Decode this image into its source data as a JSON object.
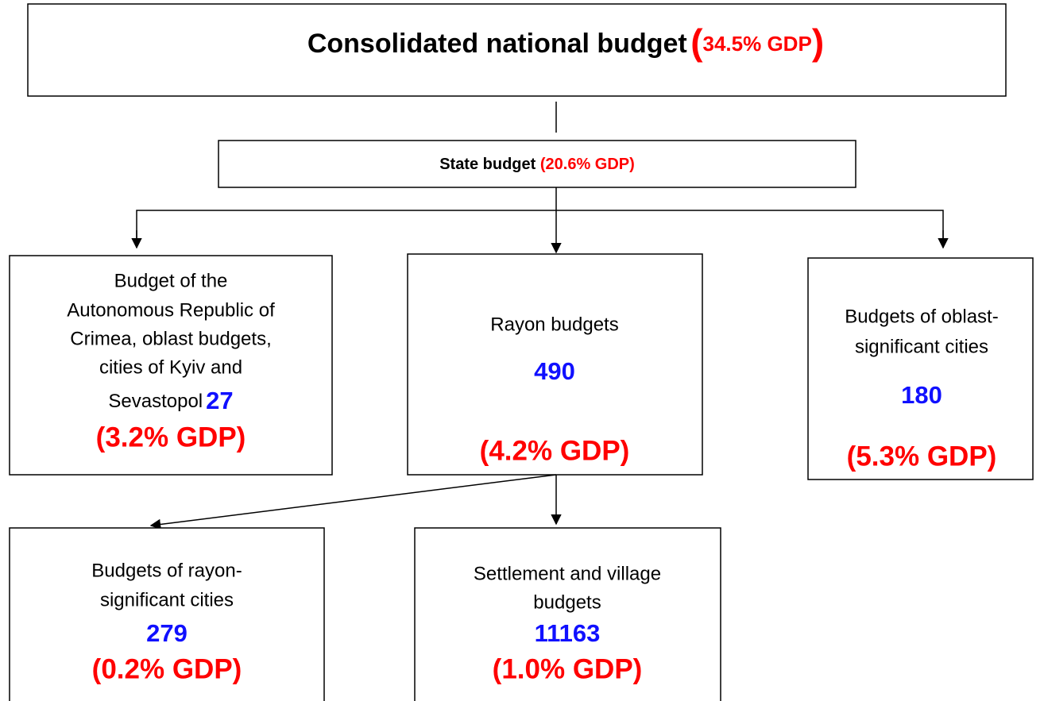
{
  "root": {
    "title": "Consolidated national budget",
    "open": "(",
    "share": "34.5% GDP",
    "close": ")"
  },
  "state": {
    "title": "State budget",
    "share": "(20.6% GDP)"
  },
  "nodes": [
    {
      "lines": [
        "Budget of the",
        "Autonomous Republic of",
        "Crimea, oblast budgets,",
        "cities of Kyiv and",
        "Sevastopol"
      ],
      "count": "27",
      "share": "(3.2% GDP)"
    },
    {
      "lines": [
        "Rayon budgets"
      ],
      "count": "490",
      "share": "(4.2% GDP)"
    },
    {
      "lines": [
        "Budgets of oblast-",
        "significant cities"
      ],
      "count": "180",
      "share": "(5.3% GDP)"
    },
    {
      "lines": [
        "Budgets of rayon-",
        "significant cities"
      ],
      "count": "279",
      "share": "(0.2% GDP)"
    },
    {
      "lines": [
        "Settlement and village",
        "budgets"
      ],
      "count": "11163",
      "share": "(1.0% GDP)"
    }
  ]
}
